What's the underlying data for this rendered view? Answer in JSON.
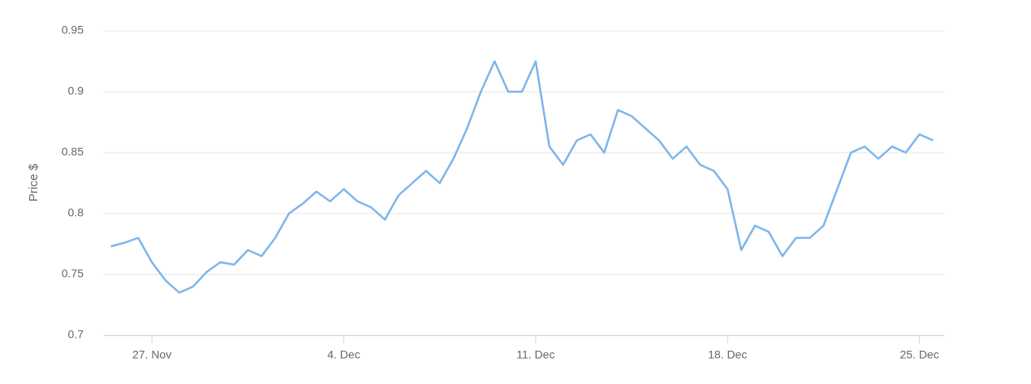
{
  "chart_data": {
    "type": "line",
    "y_axis_label": "Price $",
    "x": [
      -1.5,
      -1,
      -0.5,
      0,
      0.5,
      1,
      1.5,
      2,
      2.5,
      3,
      3.5,
      4,
      4.5,
      5,
      5.5,
      6,
      6.5,
      7,
      7.5,
      8,
      8.5,
      9,
      9.5,
      10,
      10.5,
      11,
      11.5,
      12,
      12.5,
      13,
      13.5,
      14,
      14.5,
      15,
      15.5,
      16,
      16.5,
      17,
      17.5,
      18,
      18.5,
      19,
      19.5,
      20,
      20.5,
      21,
      21.5,
      22,
      22.5,
      23,
      23.5,
      24,
      24.5,
      25,
      25.5,
      26,
      26.5,
      27,
      27.5,
      28,
      28.5
    ],
    "series": [
      {
        "color": "#7cb5ec",
        "values": [
          0.773,
          0.776,
          0.78,
          0.76,
          0.745,
          0.735,
          0.74,
          0.752,
          0.76,
          0.758,
          0.77,
          0.765,
          0.78,
          0.8,
          0.808,
          0.818,
          0.81,
          0.82,
          0.81,
          0.805,
          0.795,
          0.815,
          0.825,
          0.835,
          0.825,
          0.845,
          0.87,
          0.9,
          0.925,
          0.9,
          0.9,
          0.925,
          0.855,
          0.84,
          0.86,
          0.865,
          0.85,
          0.885,
          0.88,
          0.87,
          0.86,
          0.845,
          0.855,
          0.84,
          0.835,
          0.82,
          0.77,
          0.79,
          0.785,
          0.765,
          0.78,
          0.78,
          0.79,
          0.82,
          0.85,
          0.855,
          0.845,
          0.855,
          0.85,
          0.865,
          0.86
        ]
      }
    ],
    "xlim": [
      -1.75,
      28.9
    ],
    "xticks": [
      {
        "value": 0,
        "label": "27. Nov"
      },
      {
        "value": 7,
        "label": "4. Dec"
      },
      {
        "value": 14,
        "label": "11. Dec"
      },
      {
        "value": 21,
        "label": "18. Dec"
      },
      {
        "value": 28,
        "label": "25. Dec"
      }
    ],
    "ylim": [
      0.7,
      0.95
    ],
    "yticks": [
      0.7,
      0.75,
      0.8,
      0.85,
      0.9,
      0.95
    ],
    "grid": true
  }
}
